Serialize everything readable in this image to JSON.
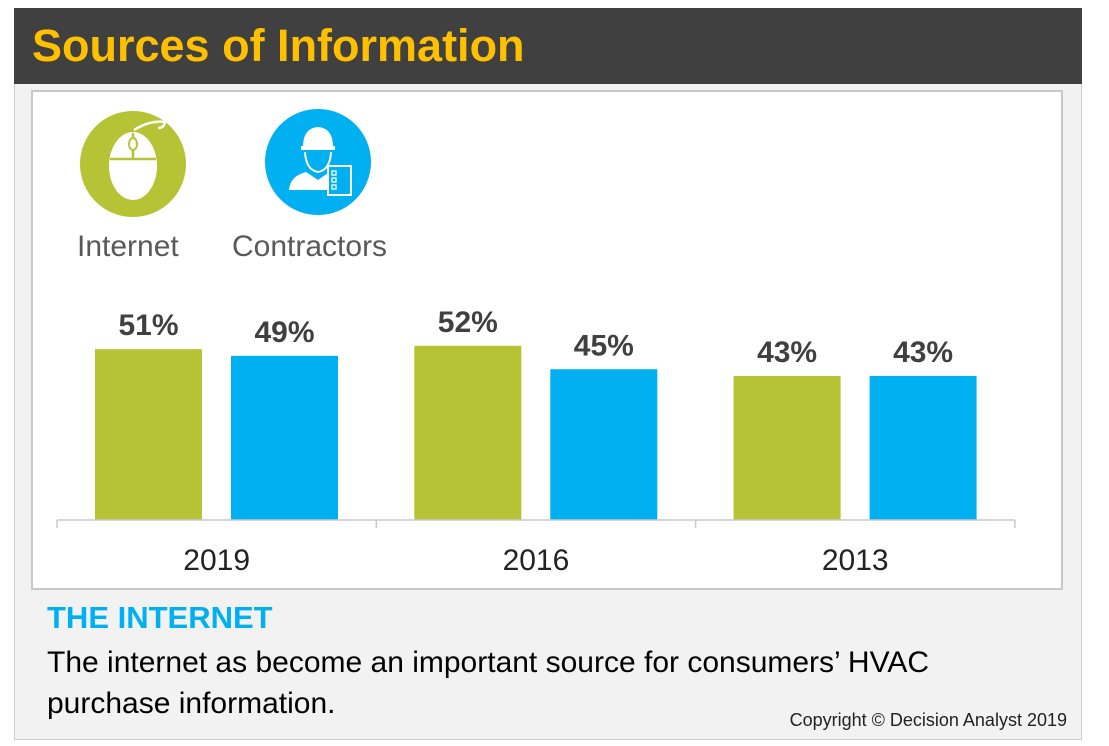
{
  "title": "Sources of Information",
  "legend": [
    {
      "label": "Internet",
      "icon": "computer-mouse-icon",
      "color": "#b5c334"
    },
    {
      "label": "Contractors",
      "icon": "contractor-hardhat-icon",
      "color": "#00b0f0"
    }
  ],
  "chart_data": {
    "type": "bar",
    "categories": [
      "2019",
      "2016",
      "2013"
    ],
    "series": [
      {
        "name": "Internet",
        "values": [
          51,
          52,
          43
        ],
        "labels": [
          "51%",
          "52%",
          "43%"
        ],
        "color": "#b5c334"
      },
      {
        "name": "Contractors",
        "values": [
          49,
          45,
          43
        ],
        "labels": [
          "49%",
          "45%",
          "43%"
        ],
        "color": "#00b0f0"
      }
    ],
    "ylim": [
      0,
      100
    ],
    "grid": false,
    "legend_placement": "top-left"
  },
  "section": {
    "heading": "THE INTERNET",
    "body": "The internet as become an important source for consumers’ HVAC purchase information."
  },
  "copyright": "Copyright © Decision Analyst 2019"
}
